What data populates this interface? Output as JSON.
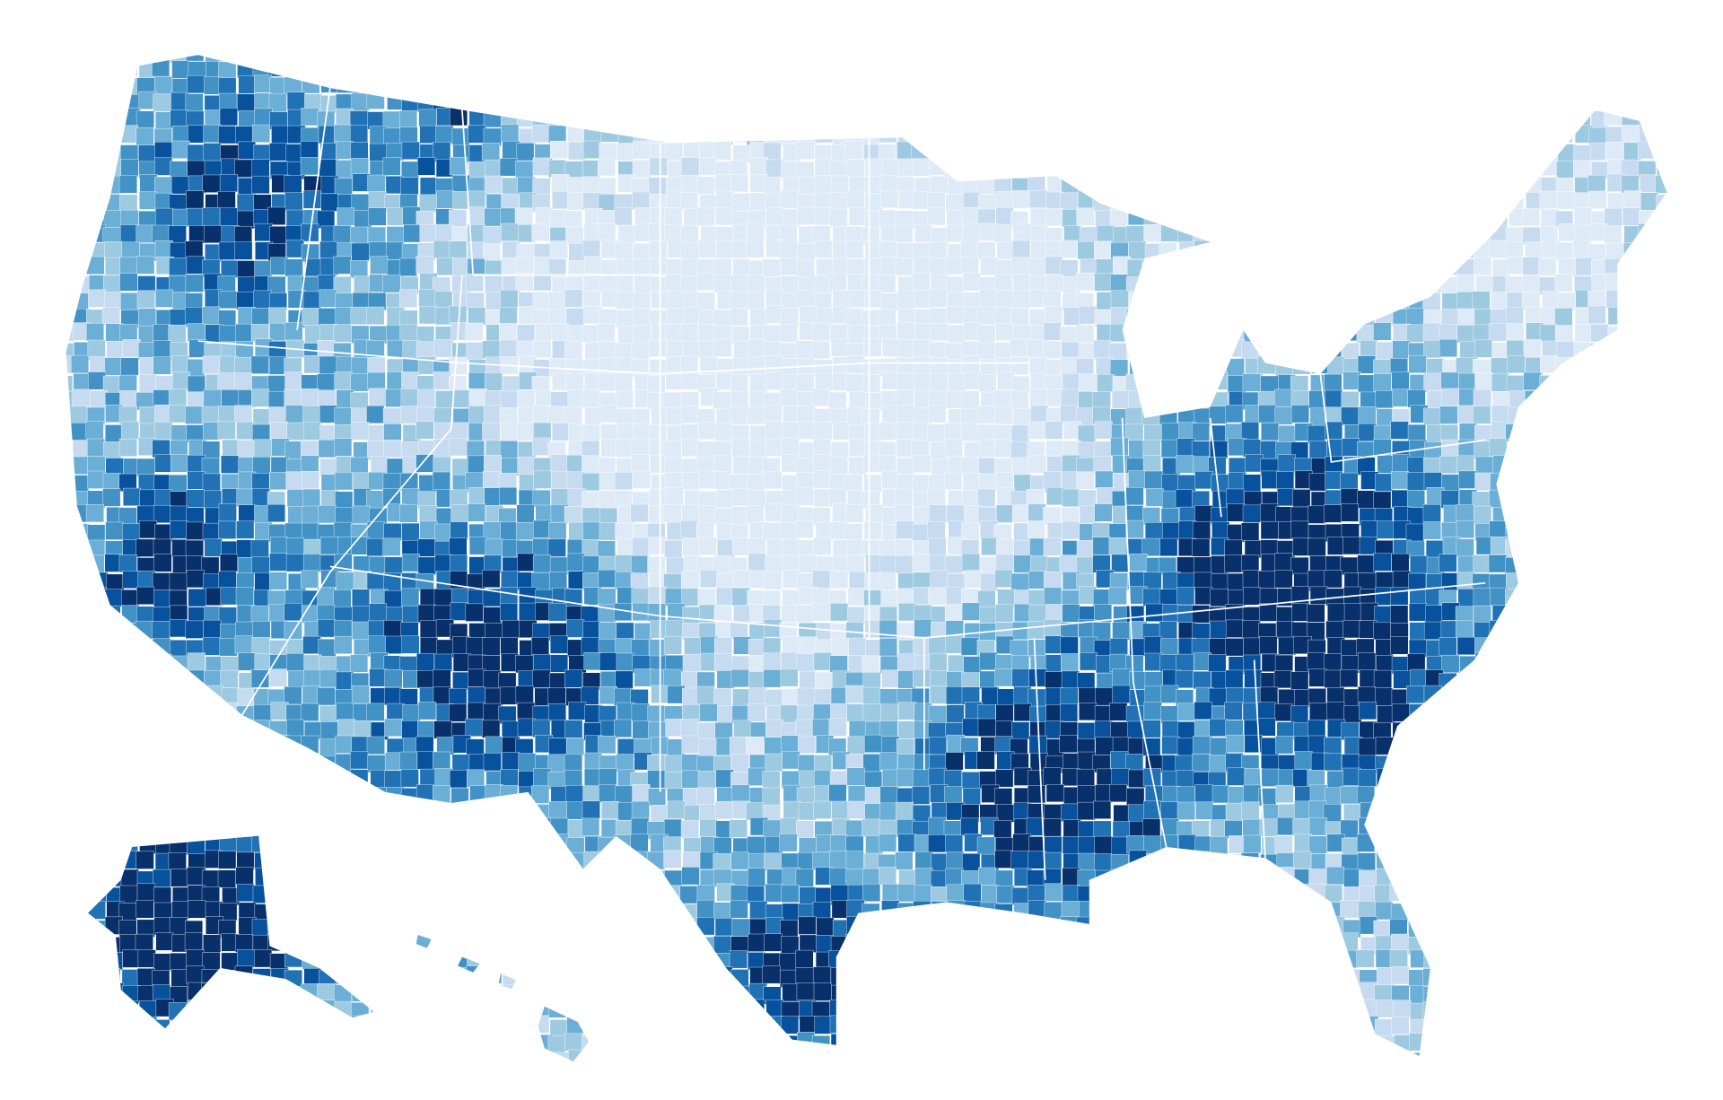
{
  "map": {
    "palette": [
      "#f7fbff",
      "#deebf7",
      "#c6dbef",
      "#9ecae1",
      "#6baed6",
      "#4292c6",
      "#2171b5",
      "#08519c",
      "#08306b"
    ]
  }
}
